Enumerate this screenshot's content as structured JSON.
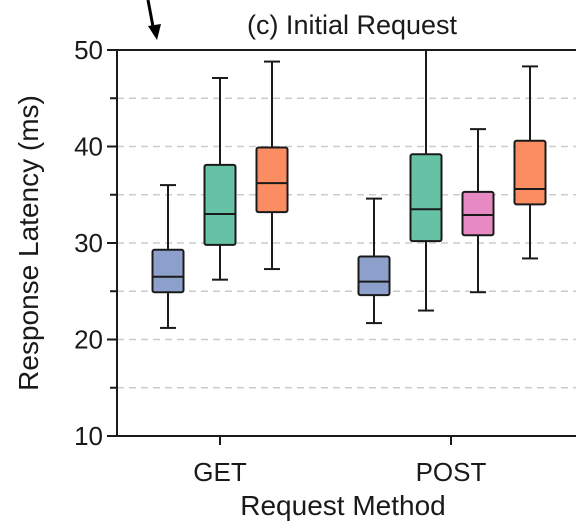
{
  "chart_data": {
    "type": "box",
    "title": "(c) Initial Request",
    "xlabel": "Request Method",
    "ylabel": "Response Latency (ms)",
    "ylim": [
      10,
      50
    ],
    "yticks": [
      10,
      20,
      30,
      40,
      50
    ],
    "grid": "horizontal dashed",
    "categories": [
      "GET",
      "POST"
    ],
    "colors": [
      "#8da0cb",
      "#66c2a5",
      "#e78ac3",
      "#fc8d62"
    ],
    "groups": [
      {
        "category": "GET",
        "boxes": [
          {
            "color": "#8da0cb",
            "whisker_low": 21.2,
            "q1": 24.9,
            "median": 26.5,
            "q3": 29.3,
            "whisker_high": 36.0
          },
          {
            "color": "#66c2a5",
            "whisker_low": 26.2,
            "q1": 29.8,
            "median": 33.0,
            "q3": 38.1,
            "whisker_high": 47.1
          },
          {
            "color": "#fc8d62",
            "whisker_low": 27.3,
            "q1": 33.2,
            "median": 36.2,
            "q3": 39.9,
            "whisker_high": 48.8
          }
        ]
      },
      {
        "category": "POST",
        "boxes": [
          {
            "color": "#8da0cb",
            "whisker_low": 21.7,
            "q1": 24.6,
            "median": 26.0,
            "q3": 28.6,
            "whisker_high": 34.6
          },
          {
            "color": "#66c2a5",
            "whisker_low": 23.0,
            "q1": 30.2,
            "median": 33.5,
            "q3": 39.2,
            "whisker_high": 51.0
          },
          {
            "color": "#e78ac3",
            "whisker_low": 24.9,
            "q1": 30.8,
            "median": 32.9,
            "q3": 35.3,
            "whisker_high": 41.8
          },
          {
            "color": "#fc8d62",
            "whisker_low": 28.4,
            "q1": 34.0,
            "median": 35.6,
            "q3": 40.6,
            "whisker_high": 48.3
          }
        ]
      }
    ]
  }
}
